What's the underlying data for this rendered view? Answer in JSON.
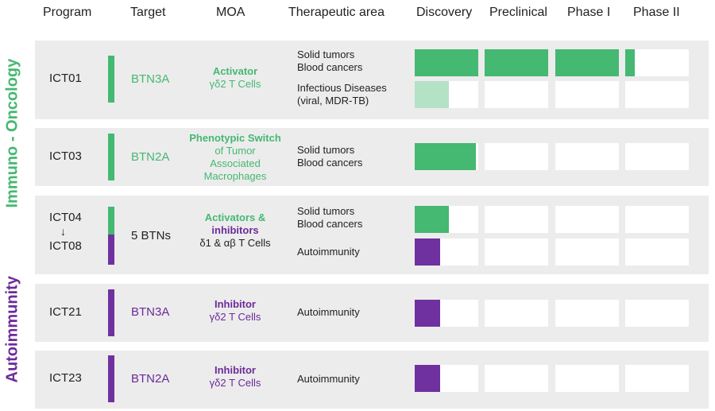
{
  "colors": {
    "green": "#45b872",
    "light_green": "#b4e2c5",
    "purple": "#7031a0",
    "row_bg": "#ececec"
  },
  "headers": {
    "program": "Program",
    "target": "Target",
    "moa": "MOA",
    "area": "Therapeutic area",
    "discovery": "Discovery",
    "preclinical": "Preclinical",
    "phase1": "Phase I",
    "phase2": "Phase II"
  },
  "side_labels": {
    "oncology": "Immuno - Oncology",
    "autoimmunity": "Autoimmunity"
  },
  "rows": [
    {
      "program": "ICT01",
      "target": "BTN3A",
      "moa_bold": "Activator",
      "moa_normal": "γδ2 T Cells"
    },
    {
      "program": "ICT03",
      "target": "BTN2A",
      "moa_bold": "Phenotypic Switch",
      "moa_normal": "of Tumor Associated Macrophages"
    },
    {
      "program_top": "ICT04",
      "arrow": "↓",
      "program_bottom": "ICT08",
      "target": "5 BTNs",
      "moa_bold1": "Activators &",
      "moa_bold2": "inhibitors",
      "moa_normal": "δ1 & αβ T Cells"
    },
    {
      "program": "ICT21",
      "target": "BTN3A",
      "moa_bold": "Inhibitor",
      "moa_normal": "γδ2 T Cells"
    },
    {
      "program": "ICT23",
      "target": "BTN2A",
      "moa_bold": "Inhibitor",
      "moa_normal": "γδ2 T Cells"
    }
  ],
  "chart_data": {
    "type": "bar",
    "categories": [
      "Discovery",
      "Preclinical",
      "Phase I",
      "Phase II"
    ],
    "note_units": "progress in stages completed (0 to 4)",
    "tracks": [
      {
        "program": "ICT01",
        "area_lines": [
          "Solid tumors",
          "Blood cancers"
        ],
        "progress": 3.15,
        "color": "green"
      },
      {
        "program": "ICT01",
        "area_lines": [
          "Infectious Diseases",
          "(viral, MDR-TB)"
        ],
        "progress": 0.54,
        "color": "light_green"
      },
      {
        "program": "ICT03",
        "area_lines": [
          "Solid tumors",
          "Blood cancers"
        ],
        "progress": 0.96,
        "color": "green"
      },
      {
        "program": "ICT04",
        "area_lines": [
          "Solid tumors",
          "Blood cancers"
        ],
        "progress": 0.54,
        "color": "green"
      },
      {
        "program": "ICT08",
        "area_lines": [
          "Autoimmunity"
        ],
        "progress": 0.4,
        "color": "purple"
      },
      {
        "program": "ICT21",
        "area_lines": [
          "Autoimmunity"
        ],
        "progress": 0.4,
        "color": "purple"
      },
      {
        "program": "ICT23",
        "area_lines": [
          "Autoimmunity"
        ],
        "progress": 0.4,
        "color": "purple"
      }
    ]
  }
}
